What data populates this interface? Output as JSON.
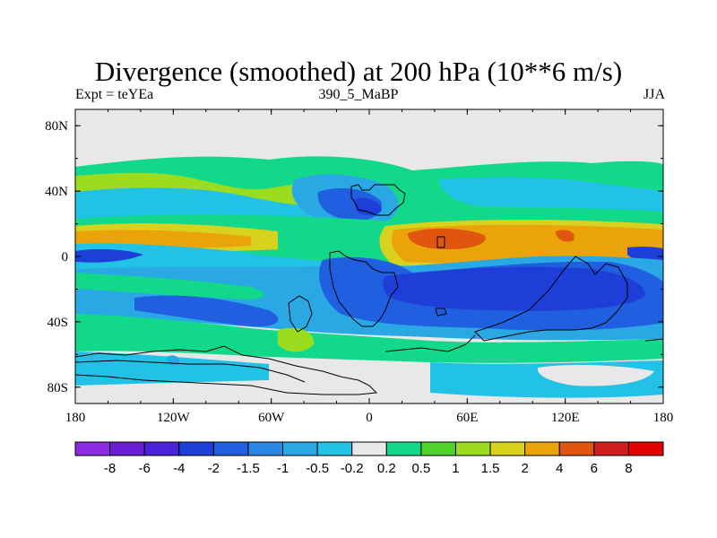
{
  "chart_data": {
    "type": "filled-contour-map",
    "title": "Divergence (smoothed) at 200 hPa (10**6 m/s)",
    "left_string": "Expt = teYEa",
    "center_string": "390_5_MaBP",
    "right_string": "JJA",
    "lon_ticks": [
      "180",
      "120W",
      "60W",
      "0",
      "60E",
      "120E",
      "180"
    ],
    "lon_values": [
      -180,
      -120,
      -60,
      0,
      60,
      120,
      180
    ],
    "lat_ticks": [
      "80N",
      "40N",
      "0",
      "40S",
      "80S"
    ],
    "lat_values": [
      80,
      40,
      0,
      -40,
      -80
    ],
    "xlim": [
      -180,
      180
    ],
    "ylim": [
      -90,
      90
    ],
    "colorbar": {
      "labels": [
        "-8",
        "-6",
        "-4",
        "-2",
        "-1.5",
        "-1",
        "-0.5",
        "-0.2",
        "0.2",
        "0.5",
        "1",
        "1.5",
        "2",
        "4",
        "6",
        "8"
      ],
      "colors": [
        "#8a2be2",
        "#6a1fd6",
        "#4a22d8",
        "#1d3fd8",
        "#1f5fe0",
        "#2a86e4",
        "#2aa8e4",
        "#22c2e6",
        "#e8e8e8",
        "#12d98a",
        "#4fd22a",
        "#9bdc1e",
        "#d8d21e",
        "#eba30a",
        "#e0560e",
        "#d01e1e",
        "#e50000"
      ]
    }
  }
}
